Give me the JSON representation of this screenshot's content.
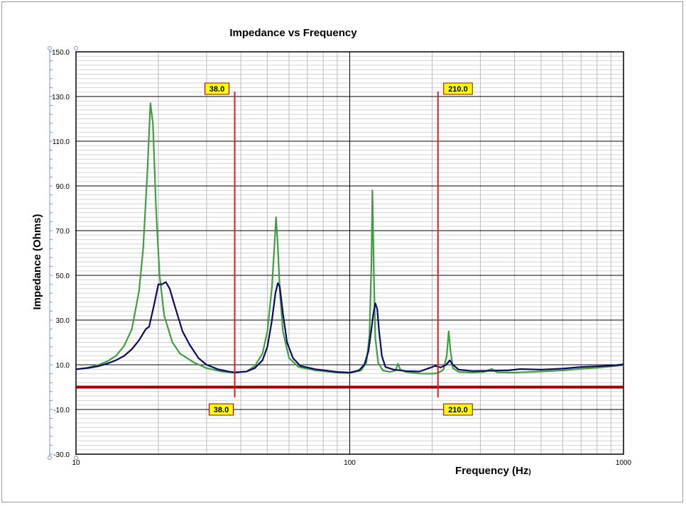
{
  "chart_data": {
    "type": "line",
    "title": "Impedance vs Frequency",
    "xlabel": "Frequency (Hz",
    "xlabel_paren": ")",
    "ylabel": "Impedance (Ohms)",
    "xscale": "log",
    "xlim": [
      10,
      1000
    ],
    "ylim": [
      -30,
      150
    ],
    "grid": true,
    "legend": "none",
    "x_ticks": [
      "10",
      "100",
      "1000"
    ],
    "y_ticks": [
      "150.0",
      "130.0",
      "110.0",
      "90.0",
      "70.0",
      "50.0",
      "30.0",
      "10.0",
      "-10.0",
      "-30.0"
    ],
    "colors": {
      "series_green": "#3f9e3f",
      "series_navy": "#0a0a64",
      "marker_red": "#d42020",
      "zero_line": "#9a0000",
      "label_fill": "#ffff00"
    },
    "markers": [
      {
        "x": 38,
        "label": "38.0"
      },
      {
        "x": 210,
        "label": "210.0"
      }
    ],
    "series": [
      {
        "color": "#3f9e3f",
        "points": [
          [
            10,
            8
          ],
          [
            11,
            8.7
          ],
          [
            12,
            9.8
          ],
          [
            13,
            11.5
          ],
          [
            14,
            14
          ],
          [
            15,
            18.5
          ],
          [
            16,
            26
          ],
          [
            17,
            43
          ],
          [
            17.6,
            62
          ],
          [
            18.2,
            95
          ],
          [
            18.7,
            127
          ],
          [
            19.1,
            118
          ],
          [
            19.6,
            80
          ],
          [
            20.2,
            50
          ],
          [
            21,
            32
          ],
          [
            22.5,
            20
          ],
          [
            24,
            15
          ],
          [
            27,
            11
          ],
          [
            30,
            8.5
          ],
          [
            34,
            7
          ],
          [
            38,
            6.4
          ],
          [
            42,
            7
          ],
          [
            45,
            9.5
          ],
          [
            48,
            15
          ],
          [
            50,
            25
          ],
          [
            52,
            45
          ],
          [
            53,
            62
          ],
          [
            53.8,
            76
          ],
          [
            54.6,
            63
          ],
          [
            55.6,
            42
          ],
          [
            57,
            25
          ],
          [
            60,
            13
          ],
          [
            65,
            9
          ],
          [
            75,
            7.5
          ],
          [
            90,
            6.5
          ],
          [
            100,
            6.3
          ],
          [
            110,
            7.5
          ],
          [
            115,
            11
          ],
          [
            118,
            23
          ],
          [
            120,
            55
          ],
          [
            121,
            88
          ],
          [
            122.5,
            50
          ],
          [
            124,
            22
          ],
          [
            127,
            11
          ],
          [
            132,
            7.5
          ],
          [
            140,
            6.8
          ],
          [
            147,
            7.4
          ],
          [
            150,
            10.5
          ],
          [
            153,
            7.8
          ],
          [
            160,
            6.8
          ],
          [
            180,
            6.1
          ],
          [
            200,
            6
          ],
          [
            210,
            6.3
          ],
          [
            220,
            7.8
          ],
          [
            226,
            14
          ],
          [
            230,
            25
          ],
          [
            233,
            17
          ],
          [
            238,
            8.5
          ],
          [
            250,
            6.8
          ],
          [
            280,
            6.5
          ],
          [
            310,
            6.8
          ],
          [
            330,
            8.2
          ],
          [
            345,
            6.6
          ],
          [
            400,
            6.5
          ],
          [
            500,
            7
          ],
          [
            600,
            7.5
          ],
          [
            700,
            8.2
          ],
          [
            800,
            8.7
          ],
          [
            1000,
            9.8
          ]
        ]
      },
      {
        "color": "#0a0a64",
        "points": [
          [
            10,
            8
          ],
          [
            11,
            8.5
          ],
          [
            12,
            9.3
          ],
          [
            13,
            10.5
          ],
          [
            14,
            12
          ],
          [
            15,
            14
          ],
          [
            16,
            17
          ],
          [
            17,
            21
          ],
          [
            18,
            26
          ],
          [
            18.5,
            27
          ],
          [
            19.3,
            37
          ],
          [
            20,
            46
          ],
          [
            20.6,
            46
          ],
          [
            21.3,
            47
          ],
          [
            22,
            44
          ],
          [
            23,
            36
          ],
          [
            24.5,
            25
          ],
          [
            26,
            19
          ],
          [
            28,
            13
          ],
          [
            30,
            10
          ],
          [
            33,
            8
          ],
          [
            36,
            7
          ],
          [
            38,
            6.6
          ],
          [
            42,
            7
          ],
          [
            45,
            8.5
          ],
          [
            48,
            12
          ],
          [
            50,
            18
          ],
          [
            52,
            30
          ],
          [
            53.5,
            42
          ],
          [
            54.6,
            46.5
          ],
          [
            55.5,
            45
          ],
          [
            57,
            33
          ],
          [
            59,
            20
          ],
          [
            62,
            13
          ],
          [
            66,
            9.5
          ],
          [
            75,
            8
          ],
          [
            90,
            6.8
          ],
          [
            100,
            6.5
          ],
          [
            108,
            7.5
          ],
          [
            113,
            10
          ],
          [
            117,
            16
          ],
          [
            120,
            26
          ],
          [
            122,
            33
          ],
          [
            124,
            37.5
          ],
          [
            126,
            35
          ],
          [
            128,
            25
          ],
          [
            131,
            14
          ],
          [
            135,
            9
          ],
          [
            145,
            7.8
          ],
          [
            160,
            7.2
          ],
          [
            180,
            7
          ],
          [
            195,
            8.5
          ],
          [
            205,
            9.5
          ],
          [
            215,
            8.8
          ],
          [
            225,
            10
          ],
          [
            232,
            12
          ],
          [
            238,
            10
          ],
          [
            250,
            7.8
          ],
          [
            280,
            7.2
          ],
          [
            320,
            7.3
          ],
          [
            380,
            7.5
          ],
          [
            420,
            8.1
          ],
          [
            500,
            7.8
          ],
          [
            600,
            8.3
          ],
          [
            700,
            9
          ],
          [
            800,
            9.3
          ],
          [
            900,
            9.6
          ],
          [
            1000,
            10.2
          ]
        ]
      }
    ]
  }
}
